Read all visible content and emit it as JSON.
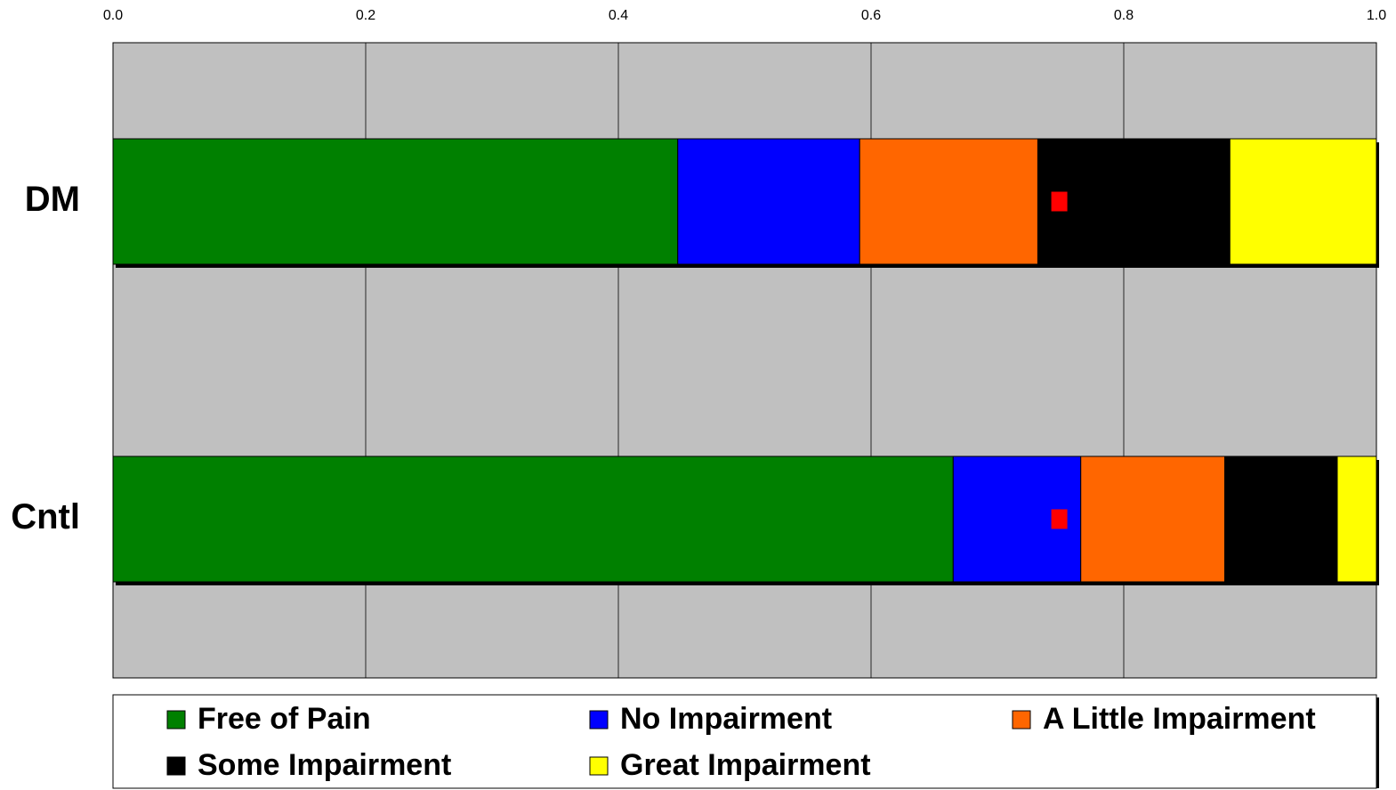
{
  "chart_data": {
    "type": "bar",
    "orientation": "horizontal",
    "stacked": true,
    "categories": [
      "DM",
      "Cntl"
    ],
    "series": [
      {
        "name": "Free of Pain",
        "color": "#008000",
        "values": [
          0.447,
          0.665
        ]
      },
      {
        "name": "No Impairment",
        "color": "#0000ff",
        "values": [
          0.144,
          0.101
        ]
      },
      {
        "name": "A Little Impairment",
        "color": "#ff6600",
        "values": [
          0.141,
          0.114
        ]
      },
      {
        "name": "Some Impairment",
        "color": "#000000",
        "values": [
          0.152,
          0.089
        ]
      },
      {
        "name": "Great Impairment",
        "color": "#ffff00",
        "values": [
          0.116,
          0.031
        ]
      }
    ],
    "markers": {
      "color": "#ff0000",
      "values": [
        0.749,
        0.749
      ]
    },
    "xlim": [
      0,
      1
    ],
    "xticks": [
      {
        "value": 0,
        "label": "0.0"
      },
      0.2,
      0.4,
      0.6,
      0.8,
      {
        "value": 1,
        "label": "1.0"
      }
    ],
    "grid": true,
    "plot_background": "#c0c0c0",
    "legend": "bottom"
  }
}
